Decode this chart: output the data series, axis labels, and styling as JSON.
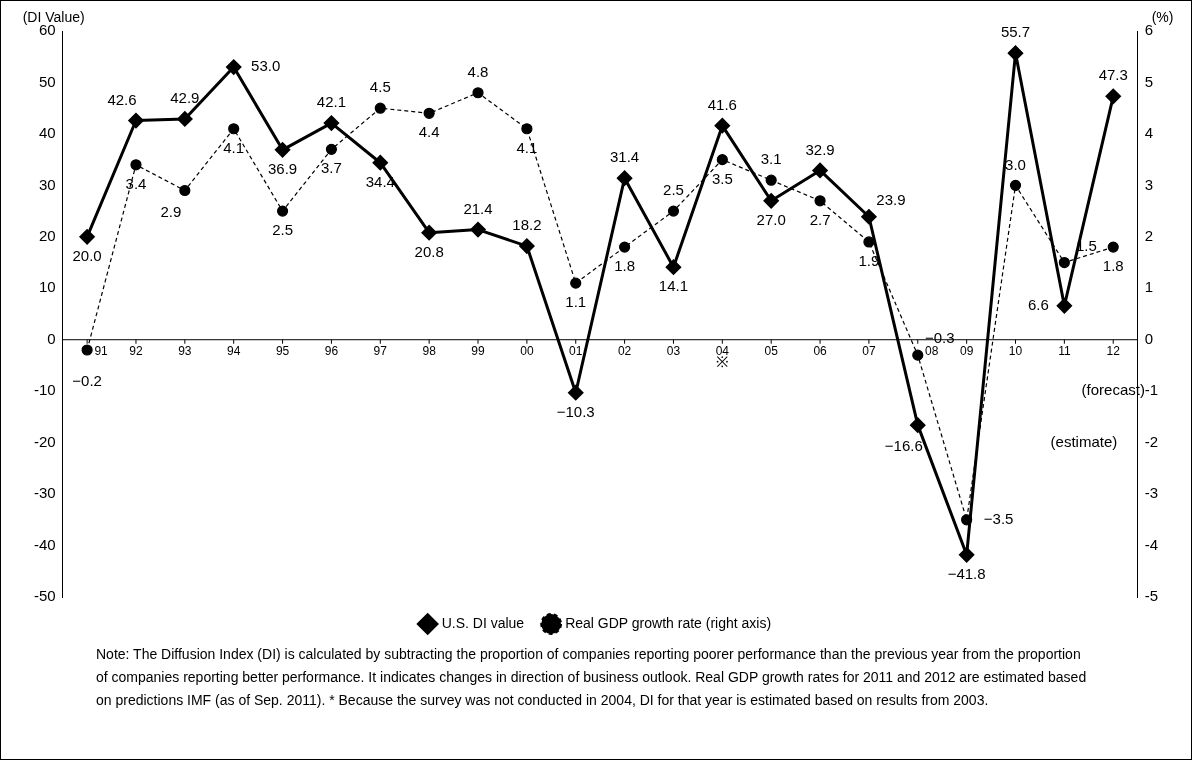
{
  "chart_data": {
    "type": "line",
    "ylabel": "(DI Value)",
    "y2label": "(%)",
    "categories": [
      "91",
      "92",
      "93",
      "94",
      "95",
      "96",
      "97",
      "98",
      "99",
      "00",
      "01",
      "02",
      "03",
      "04",
      "05",
      "06",
      "07",
      "08",
      "09",
      "10",
      "11",
      "12"
    ],
    "series": [
      {
        "name": "U.S. DI value",
        "color": "#000000",
        "marker": "diamond",
        "line_style": "solid",
        "values": [
          20.0,
          42.6,
          42.9,
          53.0,
          36.9,
          42.1,
          34.4,
          20.8,
          21.4,
          18.2,
          -10.3,
          31.4,
          14.1,
          41.6,
          27.0,
          32.9,
          23.9,
          -16.6,
          -41.8,
          55.7,
          6.6,
          47.3
        ],
        "value_labels": [
          "20.0",
          "42.6",
          "42.9",
          "53.0",
          "36.9",
          "42.1",
          "34.4",
          "20.8",
          "21.4",
          "18.2",
          "−10.3",
          "31.4",
          "14.1",
          "41.6",
          "27.0",
          "32.9",
          "23.9",
          "−16.6",
          "−41.8",
          "55.7",
          "6.6",
          "47.3"
        ]
      },
      {
        "name": "Real GDP growth rate (right axis)",
        "color": "#000000",
        "marker": "circle",
        "line_style": "dashed",
        "axis": "y2",
        "values": [
          -0.2,
          3.4,
          2.9,
          4.1,
          2.5,
          3.7,
          4.5,
          4.4,
          4.8,
          4.1,
          1.1,
          1.8,
          2.5,
          3.5,
          3.1,
          2.7,
          1.9,
          -0.3,
          -3.5,
          3.0,
          1.5,
          1.8
        ],
        "value_labels": [
          "−0.2",
          "3.4",
          "2.9",
          "4.1",
          "2.5",
          "3.7",
          "4.5",
          "4.4",
          "4.8",
          "4.1",
          "1.1",
          "1.8",
          "2.5",
          "3.5",
          "3.1",
          "2.7",
          "1.9",
          "−0.3",
          "−3.5",
          "3.0",
          "1.5",
          "1.8"
        ]
      }
    ],
    "ylim": [
      -50,
      60
    ],
    "yticks": [
      -50,
      -40,
      -30,
      -20,
      -10,
      0,
      10,
      20,
      30,
      40,
      50,
      60
    ],
    "y2lim": [
      -5,
      6
    ],
    "y2ticks": [
      -5,
      -4,
      -3,
      -2,
      -1,
      0,
      1,
      2,
      3,
      4,
      5,
      6
    ],
    "grid": false,
    "legend": "bottom",
    "annotations": [
      "※",
      "(forecast)",
      "(estimate)",
      "Note: The Diffusion Index (DI) is calculated by subtracting the proportion of companies reporting poorer performance than the previous year from the proportion of companies reporting better performance. It indicates changes in direction of business outlook. Real GDP growth rates for 2011 and 2012 are estimated based on predictions IMF (as of Sep. 2011). * Because the survey was not conducted in 2004, DI for that year is estimated based on results from 2003."
    ]
  }
}
